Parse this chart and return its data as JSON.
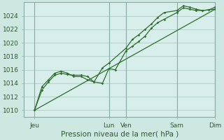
{
  "background_color": "#cce8e0",
  "plot_bg_color": "#d8eeea",
  "grid_color": "#aaccc4",
  "vline_color": "#88aaaa",
  "line_color": "#2d6e2d",
  "spine_color": "#88aaaa",
  "tick_label_color": "#2d5a2d",
  "title": "Pression niveau de la mer( hPa )",
  "ylabel_ticks": [
    1010,
    1012,
    1014,
    1016,
    1018,
    1020,
    1022,
    1024
  ],
  "ylim": [
    1009.0,
    1026.0
  ],
  "xlim": [
    0.0,
    9.0
  ],
  "xtick_positions": [
    0.5,
    4.0,
    4.8,
    7.2,
    9.0
  ],
  "xtick_labels": [
    "Jeu",
    "Lun",
    "Ven",
    "Sam",
    "Dim"
  ],
  "vline_positions": [
    0.5,
    4.0,
    4.8,
    7.2,
    9.0
  ],
  "line1_x": [
    0.5,
    0.85,
    1.15,
    1.45,
    1.75,
    2.05,
    2.35,
    2.7,
    3.0,
    3.3,
    3.7,
    4.0,
    4.3,
    4.8,
    5.1,
    5.4,
    5.7,
    6.0,
    6.3,
    6.6,
    7.2,
    7.5,
    7.8,
    8.1,
    8.4,
    8.7,
    9.0
  ],
  "line1_y": [
    1010.0,
    1013.0,
    1014.2,
    1015.2,
    1015.5,
    1015.3,
    1015.2,
    1015.2,
    1015.0,
    1014.2,
    1014.0,
    1016.2,
    1016.0,
    1018.8,
    1019.5,
    1020.2,
    1021.0,
    1022.2,
    1023.0,
    1023.5,
    1024.5,
    1025.2,
    1025.0,
    1024.8,
    1024.8,
    1024.9,
    1025.0
  ],
  "line2_x": [
    0.5,
    0.85,
    1.15,
    1.45,
    1.75,
    2.05,
    2.35,
    2.7,
    3.0,
    3.3,
    3.7,
    4.0,
    4.8,
    5.1,
    5.4,
    5.7,
    6.0,
    6.3,
    6.6,
    7.2,
    7.5,
    7.8,
    8.1,
    8.4,
    8.7,
    9.0
  ],
  "line2_y": [
    1010.0,
    1013.5,
    1014.5,
    1015.5,
    1015.8,
    1015.5,
    1015.0,
    1015.0,
    1014.5,
    1014.2,
    1016.3,
    1017.0,
    1019.2,
    1020.5,
    1021.2,
    1022.0,
    1022.8,
    1023.8,
    1024.5,
    1024.8,
    1025.5,
    1025.3,
    1025.0,
    1024.8,
    1024.9,
    1025.3
  ],
  "line3_x": [
    0.5,
    9.0
  ],
  "line3_y": [
    1010.0,
    1025.0
  ]
}
